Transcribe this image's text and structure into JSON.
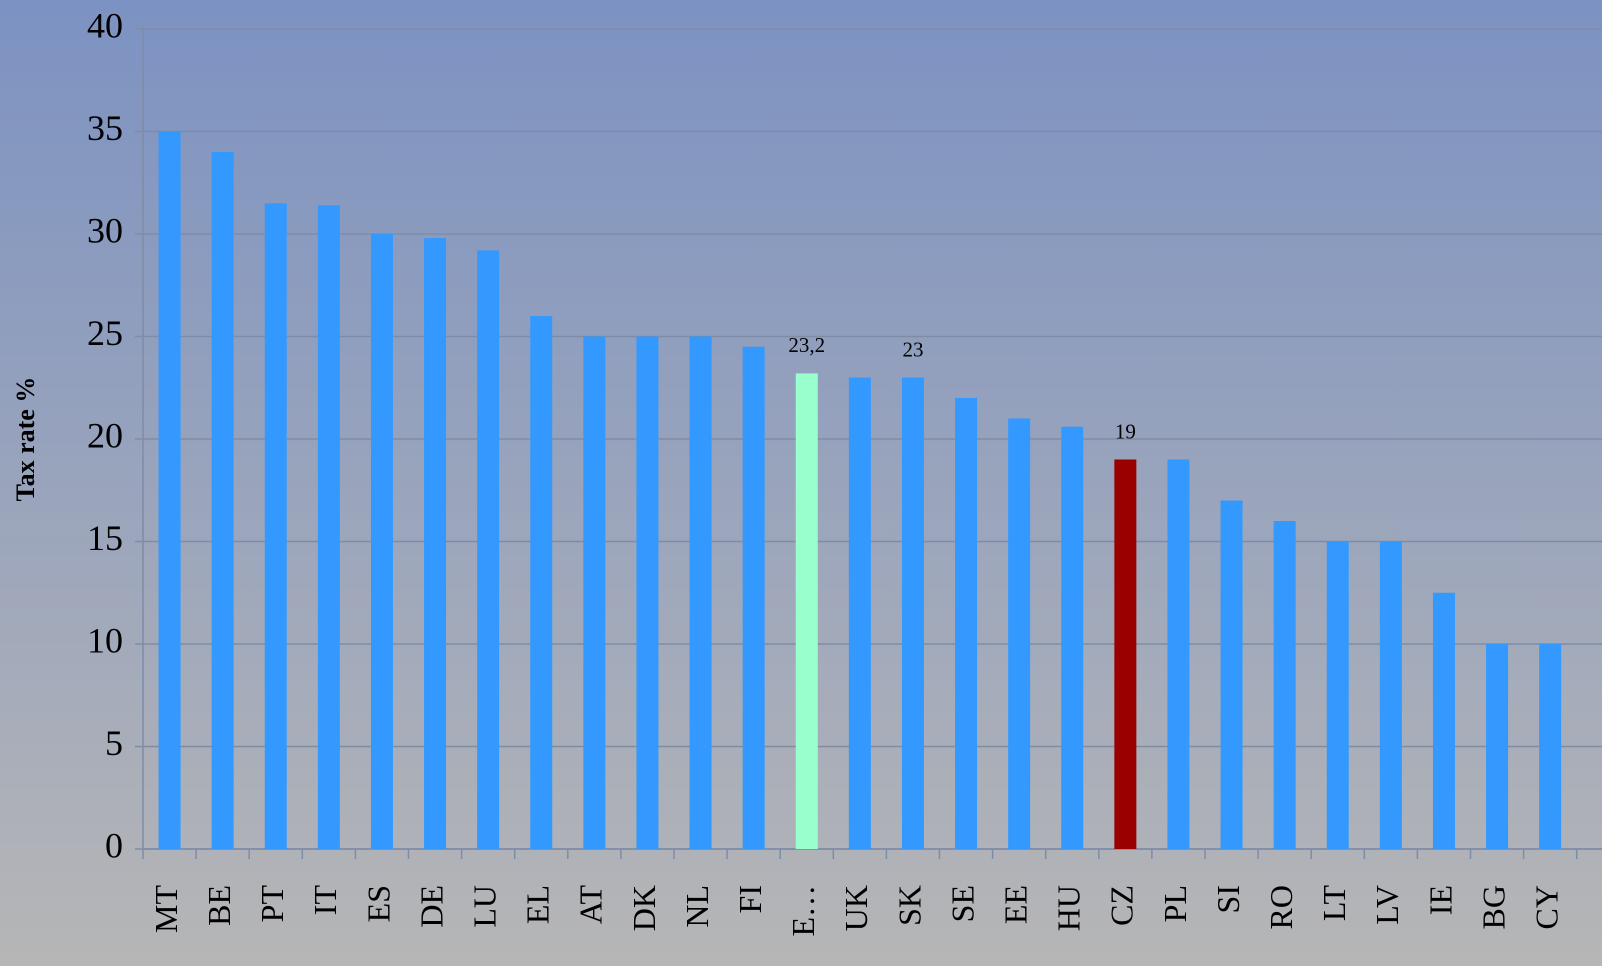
{
  "chart_data": {
    "type": "bar",
    "y_label": "Tax rate  %",
    "categories": [
      "MT",
      "BE",
      "PT",
      "IT",
      "ES",
      "DE",
      "LU",
      "EL",
      "AT",
      "DK",
      "NL",
      "FI",
      "E…",
      "UK",
      "SK",
      "SE",
      "EE",
      "HU",
      "CZ",
      "PL",
      "SI",
      "RO",
      "LT",
      "LV",
      "IE",
      "BG",
      "CY"
    ],
    "values": [
      35,
      34,
      31.5,
      31.4,
      30,
      29.8,
      29.2,
      26,
      25,
      25,
      25,
      24.5,
      23.2,
      23,
      23,
      22,
      21,
      20.6,
      19,
      19,
      17,
      16,
      15,
      15,
      12.5,
      10,
      10
    ],
    "value_labels": [
      null,
      null,
      null,
      null,
      null,
      null,
      null,
      null,
      null,
      null,
      null,
      null,
      "23,2",
      null,
      "23",
      null,
      null,
      null,
      "19",
      null,
      null,
      null,
      null,
      null,
      null,
      null,
      null
    ],
    "colors": [
      "#3399ff",
      "#3399ff",
      "#3399ff",
      "#3399ff",
      "#3399ff",
      "#3399ff",
      "#3399ff",
      "#3399ff",
      "#3399ff",
      "#3399ff",
      "#3399ff",
      "#3399ff",
      "#99ffcc",
      "#3399ff",
      "#3399ff",
      "#3399ff",
      "#3399ff",
      "#3399ff",
      "#990000",
      "#3399ff",
      "#3399ff",
      "#3399ff",
      "#3399ff",
      "#3399ff",
      "#3399ff",
      "#3399ff",
      "#3399ff"
    ],
    "ylim": [
      0,
      40
    ],
    "yticks": [
      0,
      5,
      10,
      15,
      20,
      25,
      30,
      35,
      40
    ],
    "grid": true
  }
}
